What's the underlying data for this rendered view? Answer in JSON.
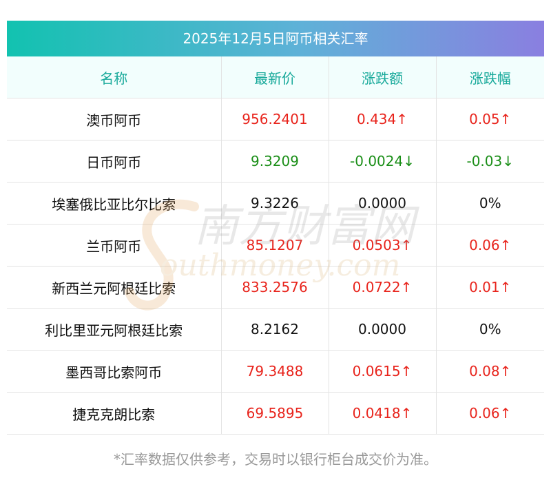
{
  "title": "2025年12月5日阿币相关汇率",
  "headers": [
    "名称",
    "最新价",
    "涨跌额",
    "涨跌幅"
  ],
  "rows": [
    {
      "name": "澳币阿币",
      "price": "956.2401",
      "change": "0.434↑",
      "pct": "0.05↑",
      "trend": "up"
    },
    {
      "name": "日币阿币",
      "price": "9.3209",
      "change": "-0.0024↓",
      "pct": "-0.03↓",
      "trend": "down"
    },
    {
      "name": "埃塞俄比亚比尔比索",
      "price": "9.3226",
      "change": "0.0000",
      "pct": "0%",
      "trend": "flat"
    },
    {
      "name": "兰币阿币",
      "price": "85.1207",
      "change": "0.0503↑",
      "pct": "0.06↑",
      "trend": "up"
    },
    {
      "name": "新西兰元阿根廷比索",
      "price": "833.2576",
      "change": "0.0722↑",
      "pct": "0.01↑",
      "trend": "up"
    },
    {
      "name": "利比里亚元阿根廷比索",
      "price": "8.2162",
      "change": "0.0000",
      "pct": "0%",
      "trend": "flat"
    },
    {
      "name": "墨西哥比索阿币",
      "price": "79.3488",
      "change": "0.0615↑",
      "pct": "0.08↑",
      "trend": "up"
    },
    {
      "name": "捷克克朗比索",
      "price": "69.5895",
      "change": "0.0418↑",
      "pct": "0.06↑",
      "trend": "up"
    }
  ],
  "footer": "*汇率数据仅供参考，交易时以银行柜台成交价为准。",
  "watermark": {
    "cn": "南方财富网",
    "en": "outhmoney.com"
  },
  "colors": {
    "up": "#e8231b",
    "down": "#1a8e17",
    "flat": "#111111",
    "header_text": "#17a99a"
  },
  "chart_data": {
    "type": "table",
    "title": "2025年12月5日阿币相关汇率",
    "columns": [
      "名称",
      "最新价",
      "涨跌额",
      "涨跌幅"
    ],
    "rows": [
      [
        "澳币阿币",
        "956.2401",
        "0.434↑",
        "0.05↑"
      ],
      [
        "日币阿币",
        "9.3209",
        "-0.0024↓",
        "-0.03↓"
      ],
      [
        "埃塞俄比亚比尔比索",
        "9.3226",
        "0.0000",
        "0%"
      ],
      [
        "兰币阿币",
        "85.1207",
        "0.0503↑",
        "0.06↑"
      ],
      [
        "新西兰元阿根廷比索",
        "833.2576",
        "0.0722↑",
        "0.01↑"
      ],
      [
        "利比里亚元阿根廷比索",
        "8.2162",
        "0.0000",
        "0%"
      ],
      [
        "墨西哥比索阿币",
        "79.3488",
        "0.0615↑",
        "0.08↑"
      ],
      [
        "捷克克朗比索",
        "69.5895",
        "0.0418↑",
        "0.06↑"
      ]
    ]
  }
}
